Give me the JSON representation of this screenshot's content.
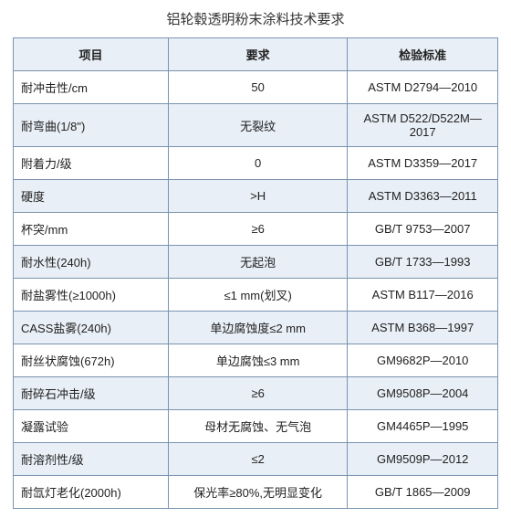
{
  "title": "铝轮毂透明粉末涂料技术要求",
  "columns": [
    "项目",
    "要求",
    "检验标准"
  ],
  "style": {
    "border_color": "#7a93b0",
    "header_bg": "#e8eff6",
    "row_bg_odd": "#ffffff",
    "row_bg_even": "#e8eff6",
    "title_fontsize": 15,
    "cell_fontsize": 13,
    "text_color": "#222222",
    "col_widths_pct": [
      32,
      37,
      31
    ]
  },
  "rows": [
    [
      "耐冲击性/cm",
      "50",
      "ASTM D2794—2010"
    ],
    [
      "耐弯曲(1/8\")",
      "无裂纹",
      "ASTM D522/D522M—2017"
    ],
    [
      "附着力/级",
      "0",
      "ASTM D3359—2017"
    ],
    [
      "硬度",
      ">H",
      "ASTM D3363—2011"
    ],
    [
      "杯突/mm",
      "≥6",
      "GB/T 9753—2007"
    ],
    [
      "耐水性(240h)",
      "无起泡",
      "GB/T 1733—1993"
    ],
    [
      "耐盐雾性(≥1000h)",
      "≤1 mm(划叉)",
      "ASTM B117—2016"
    ],
    [
      "CASS盐雾(240h)",
      "单边腐蚀度≤2 mm",
      "ASTM B368—1997"
    ],
    [
      "耐丝状腐蚀(672h)",
      "单边腐蚀≤3 mm",
      "GM9682P—2010"
    ],
    [
      "耐碎石冲击/级",
      "≥6",
      "GM9508P—2004"
    ],
    [
      "凝露试验",
      "母材无腐蚀、无气泡",
      "GM4465P—1995"
    ],
    [
      "耐溶剂性/级",
      "≤2",
      "GM9509P—2012"
    ],
    [
      "耐氙灯老化(2000h)",
      "保光率≥80%,无明显变化",
      "GB/T 1865—2009"
    ]
  ]
}
